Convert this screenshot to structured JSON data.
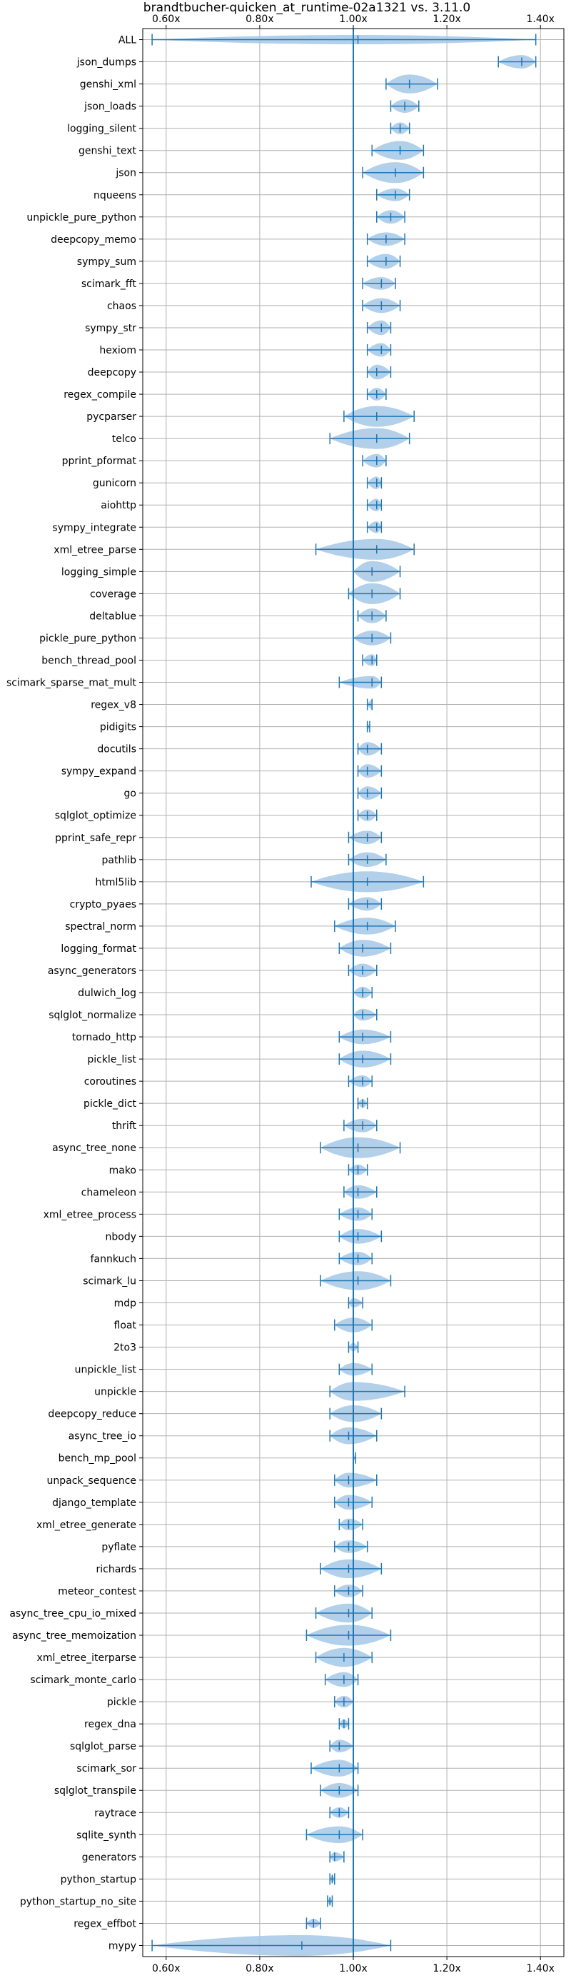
{
  "chart_data": {
    "type": "violin",
    "title": "brandtbucher-quicken_at_runtime-02a1321 vs. 3.11.0",
    "xlabel": "",
    "ylabel": "",
    "xlim": [
      0.55,
      1.45
    ],
    "x_ticks": [
      0.6,
      0.8,
      1.0,
      1.2,
      1.4
    ],
    "x_tick_labels": [
      "0.60x",
      "0.80x",
      "1.00x",
      "1.20x",
      "1.40x"
    ],
    "x_tick_positions": [
      "top",
      "bottom"
    ],
    "reference_line": 1.0,
    "grid": true,
    "colors": {
      "violin_fill": "#a6c8e6",
      "stat_line": "#1f77b4",
      "grid": "#b0b0b0",
      "axis": "#000000"
    },
    "benchmarks": [
      {
        "name": "ALL",
        "min": 0.57,
        "max": 1.39,
        "median": 1.01,
        "width": 0.012
      },
      {
        "name": "json_dumps",
        "min": 1.31,
        "max": 1.39,
        "median": 1.36,
        "width": 0.022
      },
      {
        "name": "genshi_xml",
        "min": 1.07,
        "max": 1.18,
        "median": 1.12,
        "width": 0.035
      },
      {
        "name": "json_loads",
        "min": 1.08,
        "max": 1.14,
        "median": 1.11,
        "width": 0.022
      },
      {
        "name": "logging_silent",
        "min": 1.08,
        "max": 1.12,
        "median": 1.1,
        "width": 0.018
      },
      {
        "name": "genshi_text",
        "min": 1.04,
        "max": 1.15,
        "median": 1.1,
        "width": 0.035
      },
      {
        "name": "json",
        "min": 1.02,
        "max": 1.15,
        "median": 1.09,
        "width": 0.04
      },
      {
        "name": "nqueens",
        "min": 1.05,
        "max": 1.12,
        "median": 1.09,
        "width": 0.02
      },
      {
        "name": "unpickle_pure_python",
        "min": 1.05,
        "max": 1.11,
        "median": 1.08,
        "width": 0.022
      },
      {
        "name": "deepcopy_memo",
        "min": 1.03,
        "max": 1.11,
        "median": 1.07,
        "width": 0.022
      },
      {
        "name": "sympy_sum",
        "min": 1.03,
        "max": 1.1,
        "median": 1.07,
        "width": 0.025
      },
      {
        "name": "scimark_fft",
        "min": 1.02,
        "max": 1.09,
        "median": 1.06,
        "width": 0.02
      },
      {
        "name": "chaos",
        "min": 1.02,
        "max": 1.1,
        "median": 1.06,
        "width": 0.025
      },
      {
        "name": "sympy_str",
        "min": 1.03,
        "max": 1.08,
        "median": 1.06,
        "width": 0.025
      },
      {
        "name": "hexiom",
        "min": 1.03,
        "max": 1.08,
        "median": 1.06,
        "width": 0.022
      },
      {
        "name": "deepcopy",
        "min": 1.03,
        "max": 1.08,
        "median": 1.05,
        "width": 0.025
      },
      {
        "name": "regex_compile",
        "min": 1.03,
        "max": 1.07,
        "median": 1.05,
        "width": 0.02
      },
      {
        "name": "pycparser",
        "min": 0.98,
        "max": 1.13,
        "median": 1.05,
        "width": 0.045
      },
      {
        "name": "telco",
        "min": 0.95,
        "max": 1.12,
        "median": 1.05,
        "width": 0.04
      },
      {
        "name": "pprint_pformat",
        "min": 1.02,
        "max": 1.07,
        "median": 1.05,
        "width": 0.022
      },
      {
        "name": "gunicorn",
        "min": 1.03,
        "max": 1.06,
        "median": 1.05,
        "width": 0.02
      },
      {
        "name": "aiohttp",
        "min": 1.03,
        "max": 1.06,
        "median": 1.05,
        "width": 0.02
      },
      {
        "name": "sympy_integrate",
        "min": 1.03,
        "max": 1.06,
        "median": 1.05,
        "width": 0.018
      },
      {
        "name": "xml_etree_parse",
        "min": 0.92,
        "max": 1.13,
        "median": 1.05,
        "width": 0.045
      },
      {
        "name": "logging_simple",
        "min": 1.0,
        "max": 1.1,
        "median": 1.04,
        "width": 0.04
      },
      {
        "name": "coverage",
        "min": 0.99,
        "max": 1.1,
        "median": 1.04,
        "width": 0.04
      },
      {
        "name": "deltablue",
        "min": 1.01,
        "max": 1.07,
        "median": 1.04,
        "width": 0.025
      },
      {
        "name": "pickle_pure_python",
        "min": 1.0,
        "max": 1.08,
        "median": 1.04,
        "width": 0.025
      },
      {
        "name": "bench_thread_pool",
        "min": 1.02,
        "max": 1.05,
        "median": 1.04,
        "width": 0.018
      },
      {
        "name": "scimark_sparse_mat_mult",
        "min": 0.97,
        "max": 1.06,
        "median": 1.04,
        "width": 0.02
      },
      {
        "name": "regex_v8",
        "min": 1.03,
        "max": 1.04,
        "median": 1.04,
        "width": 0.012
      },
      {
        "name": "pidigits",
        "min": 1.03,
        "max": 1.035,
        "median": 1.03,
        "width": 0.004
      },
      {
        "name": "docutils",
        "min": 1.01,
        "max": 1.06,
        "median": 1.03,
        "width": 0.022
      },
      {
        "name": "sympy_expand",
        "min": 1.01,
        "max": 1.06,
        "median": 1.03,
        "width": 0.022
      },
      {
        "name": "go",
        "min": 1.01,
        "max": 1.06,
        "median": 1.03,
        "width": 0.022
      },
      {
        "name": "sqlglot_optimize",
        "min": 1.01,
        "max": 1.05,
        "median": 1.03,
        "width": 0.018
      },
      {
        "name": "pprint_safe_repr",
        "min": 0.99,
        "max": 1.06,
        "median": 1.03,
        "width": 0.022
      },
      {
        "name": "pathlib",
        "min": 0.99,
        "max": 1.07,
        "median": 1.03,
        "width": 0.025
      },
      {
        "name": "html5lib",
        "min": 0.91,
        "max": 1.15,
        "median": 1.03,
        "width": 0.045
      },
      {
        "name": "crypto_pyaes",
        "min": 0.99,
        "max": 1.06,
        "median": 1.03,
        "width": 0.022
      },
      {
        "name": "spectral_norm",
        "min": 0.96,
        "max": 1.09,
        "median": 1.03,
        "width": 0.03
      },
      {
        "name": "logging_format",
        "min": 0.97,
        "max": 1.08,
        "median": 1.02,
        "width": 0.03
      },
      {
        "name": "async_generators",
        "min": 0.99,
        "max": 1.05,
        "median": 1.02,
        "width": 0.022
      },
      {
        "name": "dulwich_log",
        "min": 1.0,
        "max": 1.04,
        "median": 1.02,
        "width": 0.018
      },
      {
        "name": "sqlglot_normalize",
        "min": 1.0,
        "max": 1.05,
        "median": 1.02,
        "width": 0.018
      },
      {
        "name": "tornado_http",
        "min": 0.97,
        "max": 1.08,
        "median": 1.02,
        "width": 0.025
      },
      {
        "name": "pickle_list",
        "min": 0.97,
        "max": 1.08,
        "median": 1.02,
        "width": 0.03
      },
      {
        "name": "coroutines",
        "min": 0.99,
        "max": 1.04,
        "median": 1.02,
        "width": 0.018
      },
      {
        "name": "pickle_dict",
        "min": 1.01,
        "max": 1.03,
        "median": 1.02,
        "width": 0.01
      },
      {
        "name": "thrift",
        "min": 0.98,
        "max": 1.05,
        "median": 1.02,
        "width": 0.022
      },
      {
        "name": "async_tree_none",
        "min": 0.93,
        "max": 1.1,
        "median": 1.01,
        "width": 0.04
      },
      {
        "name": "mako",
        "min": 0.99,
        "max": 1.03,
        "median": 1.01,
        "width": 0.015
      },
      {
        "name": "chameleon",
        "min": 0.98,
        "max": 1.05,
        "median": 1.01,
        "width": 0.022
      },
      {
        "name": "xml_etree_process",
        "min": 0.97,
        "max": 1.04,
        "median": 1.01,
        "width": 0.022
      },
      {
        "name": "nbody",
        "min": 0.97,
        "max": 1.06,
        "median": 1.01,
        "width": 0.025
      },
      {
        "name": "fannkuch",
        "min": 0.97,
        "max": 1.04,
        "median": 1.01,
        "width": 0.022
      },
      {
        "name": "scimark_lu",
        "min": 0.93,
        "max": 1.08,
        "median": 1.01,
        "width": 0.035
      },
      {
        "name": "mdp",
        "min": 0.99,
        "max": 1.02,
        "median": 1.0,
        "width": 0.012
      },
      {
        "name": "float",
        "min": 0.96,
        "max": 1.04,
        "median": 1.0,
        "width": 0.025
      },
      {
        "name": "2to3",
        "min": 0.99,
        "max": 1.01,
        "median": 1.0,
        "width": 0.01
      },
      {
        "name": "unpickle_list",
        "min": 0.97,
        "max": 1.04,
        "median": 1.0,
        "width": 0.02
      },
      {
        "name": "unpickle",
        "min": 0.95,
        "max": 1.11,
        "median": 1.0,
        "width": 0.035
      },
      {
        "name": "deepcopy_reduce",
        "min": 0.95,
        "max": 1.06,
        "median": 1.0,
        "width": 0.03
      },
      {
        "name": "async_tree_io",
        "min": 0.95,
        "max": 1.05,
        "median": 0.99,
        "width": 0.03
      },
      {
        "name": "bench_mp_pool",
        "min": 1.0,
        "max": 1.005,
        "median": 1.0,
        "width": 0.003
      },
      {
        "name": "unpack_sequence",
        "min": 0.96,
        "max": 1.05,
        "median": 0.99,
        "width": 0.025
      },
      {
        "name": "django_template",
        "min": 0.96,
        "max": 1.04,
        "median": 0.99,
        "width": 0.025
      },
      {
        "name": "xml_etree_generate",
        "min": 0.97,
        "max": 1.02,
        "median": 0.99,
        "width": 0.018
      },
      {
        "name": "pyflate",
        "min": 0.96,
        "max": 1.03,
        "median": 0.99,
        "width": 0.02
      },
      {
        "name": "richards",
        "min": 0.93,
        "max": 1.06,
        "median": 0.99,
        "width": 0.035
      },
      {
        "name": "meteor_contest",
        "min": 0.96,
        "max": 1.02,
        "median": 0.99,
        "width": 0.02
      },
      {
        "name": "async_tree_cpu_io_mixed",
        "min": 0.92,
        "max": 1.04,
        "median": 0.99,
        "width": 0.035
      },
      {
        "name": "async_tree_memoization",
        "min": 0.9,
        "max": 1.08,
        "median": 0.99,
        "width": 0.04
      },
      {
        "name": "xml_etree_iterparse",
        "min": 0.92,
        "max": 1.04,
        "median": 0.98,
        "width": 0.035
      },
      {
        "name": "scimark_monte_carlo",
        "min": 0.94,
        "max": 1.01,
        "median": 0.98,
        "width": 0.025
      },
      {
        "name": "pickle",
        "min": 0.96,
        "max": 1.0,
        "median": 0.98,
        "width": 0.018
      },
      {
        "name": "regex_dna",
        "min": 0.97,
        "max": 0.99,
        "median": 0.98,
        "width": 0.012
      },
      {
        "name": "sqlglot_parse",
        "min": 0.95,
        "max": 1.0,
        "median": 0.97,
        "width": 0.02
      },
      {
        "name": "scimark_sor",
        "min": 0.91,
        "max": 1.01,
        "median": 0.97,
        "width": 0.03
      },
      {
        "name": "sqlglot_transpile",
        "min": 0.93,
        "max": 1.01,
        "median": 0.97,
        "width": 0.025
      },
      {
        "name": "raytrace",
        "min": 0.95,
        "max": 0.99,
        "median": 0.97,
        "width": 0.015
      },
      {
        "name": "sqlite_synth",
        "min": 0.9,
        "max": 1.02,
        "median": 0.97,
        "width": 0.03
      },
      {
        "name": "generators",
        "min": 0.95,
        "max": 0.98,
        "median": 0.96,
        "width": 0.012
      },
      {
        "name": "python_startup",
        "min": 0.95,
        "max": 0.96,
        "median": 0.955,
        "width": 0.006
      },
      {
        "name": "python_startup_no_site",
        "min": 0.945,
        "max": 0.955,
        "median": 0.95,
        "width": 0.006
      },
      {
        "name": "regex_effbot",
        "min": 0.9,
        "max": 0.93,
        "median": 0.915,
        "width": 0.012
      },
      {
        "name": "mypy",
        "min": 0.57,
        "max": 1.08,
        "median": 0.89,
        "width": 0.05
      }
    ]
  }
}
